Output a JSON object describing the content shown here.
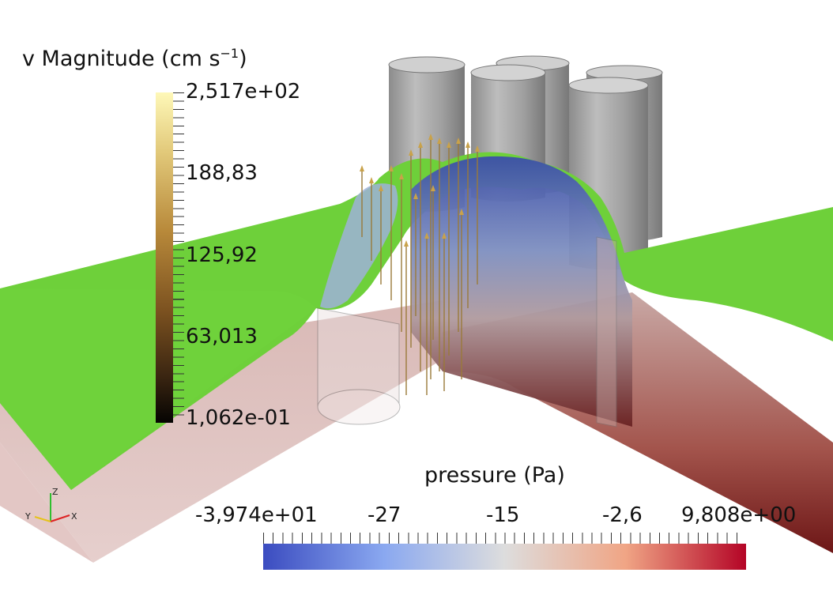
{
  "velocity_legend": {
    "title_prefix": "v  Magnitude (cm s",
    "title_exp": "−1",
    "title_suffix": ")",
    "labels": [
      "2,517e+02",
      "188,83",
      "125,92",
      "63,013",
      "1,062e-01"
    ]
  },
  "pressure_legend": {
    "title": "pressure (Pa)",
    "labels": [
      "-3,974e+01",
      "-27",
      "-15",
      "-2,6",
      "9,808e+00"
    ]
  },
  "axes": {
    "x": "X",
    "y": "Y",
    "z": "Z"
  },
  "colors": {
    "free_surface": "#6ed03a",
    "cylinders": "#a9a9a9",
    "pressure_low": "#3b4cc0",
    "pressure_high": "#b40426"
  }
}
